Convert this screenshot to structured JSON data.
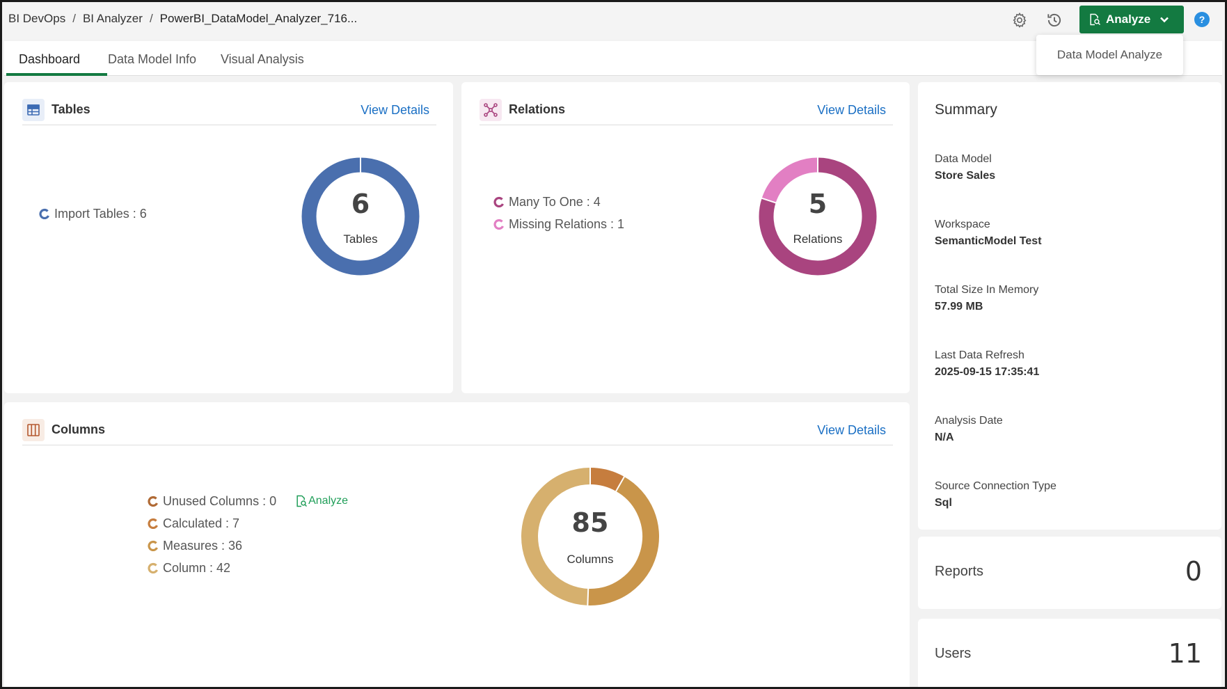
{
  "breadcrumb": [
    "BI DevOps",
    "BI Analyzer",
    "PowerBI_DataModel_Analyzer_716..."
  ],
  "header": {
    "analyze_label": "Analyze",
    "help_label": "?",
    "dropdown_item": "Data Model Analyze"
  },
  "tabs": [
    {
      "label": "Dashboard",
      "active": true
    },
    {
      "label": "Data Model Info",
      "active": false
    },
    {
      "label": "Visual Analysis",
      "active": false
    }
  ],
  "tables_card": {
    "title": "Tables",
    "view_details": "View Details",
    "legend": [
      {
        "label": "Import Tables : 6",
        "color": "#4a6fae"
      }
    ],
    "total": "6",
    "total_label": "Tables"
  },
  "relations_card": {
    "title": "Relations",
    "view_details": "View Details",
    "legend": [
      {
        "label": "Many To One : 4",
        "color": "#a9447f"
      },
      {
        "label": "Missing Relations : 1",
        "color": "#e27fc3"
      }
    ],
    "total": "5",
    "total_label": "Relations"
  },
  "columns_card": {
    "title": "Columns",
    "view_details": "View Details",
    "analyze_label": "Analyze",
    "legend": [
      {
        "label": "Unused Columns : 0",
        "color": "#b06a35"
      },
      {
        "label": "Calculated : 7",
        "color": "#c67d3e"
      },
      {
        "label": "Measures : 36",
        "color": "#c9954a"
      },
      {
        "label": "Column : 42",
        "color": "#d6b06e"
      }
    ],
    "total": "85",
    "total_label": "Columns"
  },
  "summary": {
    "title": "Summary",
    "items": [
      {
        "label": "Data Model",
        "value": "Store Sales"
      },
      {
        "label": "Workspace",
        "value": "SemanticModel Test"
      },
      {
        "label": "Total Size In Memory",
        "value": "57.99 MB"
      },
      {
        "label": "Last Data Refresh",
        "value": "2025-09-15 17:35:41"
      },
      {
        "label": "Analysis Date",
        "value": "N/A"
      },
      {
        "label": "Source Connection Type",
        "value": "Sql"
      }
    ]
  },
  "reports": {
    "label": "Reports",
    "value": "0"
  },
  "users": {
    "label": "Users",
    "value": "11"
  },
  "chart_data": [
    {
      "type": "pie",
      "categories": [
        "Import Tables"
      ],
      "values": [
        6
      ],
      "colors": [
        "#4a6fae"
      ]
    },
    {
      "type": "pie",
      "categories": [
        "Many To One",
        "Missing Relations"
      ],
      "values": [
        4,
        1
      ],
      "colors": [
        "#a9447f",
        "#e27fc3"
      ]
    },
    {
      "type": "pie",
      "categories": [
        "Unused Columns",
        "Calculated",
        "Measures",
        "Column"
      ],
      "values": [
        0,
        7,
        36,
        42
      ],
      "colors": [
        "#b06a35",
        "#c67d3e",
        "#c9954a",
        "#d6b06e"
      ]
    }
  ]
}
